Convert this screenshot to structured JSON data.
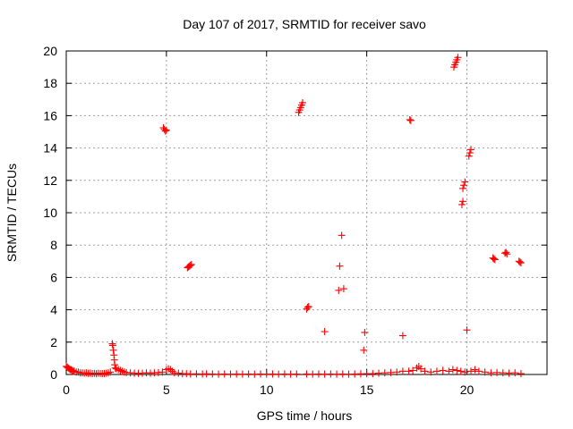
{
  "chart_data": {
    "type": "scatter",
    "title": "Day 107 of 2017, SRMTID for receiver savo",
    "xlabel": "GPS time / hours",
    "ylabel": "SRMTID / TECUs",
    "xlim": [
      0,
      24
    ],
    "ylim": [
      0,
      20
    ],
    "x_ticks": [
      0,
      5,
      10,
      15,
      20
    ],
    "x_tick_labels": [
      "0",
      "5",
      "10",
      "15",
      "20"
    ],
    "y_ticks": [
      0,
      2,
      4,
      6,
      8,
      10,
      12,
      14,
      16,
      18,
      20
    ],
    "y_tick_labels": [
      "0",
      "2",
      "4",
      "6",
      "8",
      "10",
      "12",
      "14",
      "16",
      "18",
      "20"
    ],
    "grid": true,
    "marker": "+",
    "series": [
      {
        "name": "SRMTID",
        "color": "#ff0000",
        "points": [
          [
            0.0,
            0.5
          ],
          [
            0.05,
            0.45
          ],
          [
            0.1,
            0.4
          ],
          [
            0.15,
            0.35
          ],
          [
            0.2,
            0.3
          ],
          [
            0.25,
            0.3
          ],
          [
            0.3,
            0.25
          ],
          [
            0.35,
            0.2
          ],
          [
            0.4,
            0.2
          ],
          [
            0.5,
            0.15
          ],
          [
            0.6,
            0.15
          ],
          [
            0.7,
            0.1
          ],
          [
            0.8,
            0.1
          ],
          [
            0.9,
            0.08
          ],
          [
            1.0,
            0.1
          ],
          [
            1.1,
            0.07
          ],
          [
            1.2,
            0.08
          ],
          [
            1.3,
            0.05
          ],
          [
            1.4,
            0.07
          ],
          [
            1.5,
            0.05
          ],
          [
            1.6,
            0.08
          ],
          [
            1.7,
            0.06
          ],
          [
            1.8,
            0.05
          ],
          [
            1.9,
            0.06
          ],
          [
            2.0,
            0.08
          ],
          [
            2.1,
            0.1
          ],
          [
            2.2,
            0.15
          ],
          [
            2.3,
            1.9
          ],
          [
            2.32,
            1.8
          ],
          [
            2.35,
            1.5
          ],
          [
            2.38,
            1.2
          ],
          [
            2.4,
            0.9
          ],
          [
            2.42,
            0.6
          ],
          [
            2.45,
            0.4
          ],
          [
            2.5,
            0.35
          ],
          [
            2.6,
            0.3
          ],
          [
            2.7,
            0.25
          ],
          [
            2.8,
            0.2
          ],
          [
            2.9,
            0.15
          ],
          [
            3.0,
            0.12
          ],
          [
            3.2,
            0.1
          ],
          [
            3.4,
            0.08
          ],
          [
            3.6,
            0.07
          ],
          [
            3.8,
            0.08
          ],
          [
            4.0,
            0.1
          ],
          [
            4.2,
            0.08
          ],
          [
            4.4,
            0.1
          ],
          [
            4.6,
            0.12
          ],
          [
            4.8,
            0.15
          ],
          [
            4.85,
            15.25
          ],
          [
            4.9,
            15.15
          ],
          [
            4.95,
            15.05
          ],
          [
            5.0,
            15.1
          ],
          [
            5.0,
            0.3
          ],
          [
            5.1,
            0.35
          ],
          [
            5.2,
            0.3
          ],
          [
            5.3,
            0.2
          ],
          [
            5.4,
            0.1
          ],
          [
            5.6,
            0.08
          ],
          [
            5.8,
            0.05
          ],
          [
            6.0,
            0.05
          ],
          [
            6.2,
            0.03
          ],
          [
            6.5,
            0.04
          ],
          [
            6.8,
            0.03
          ],
          [
            7.0,
            0.04
          ],
          [
            7.3,
            0.03
          ],
          [
            7.6,
            0.02
          ],
          [
            7.9,
            0.03
          ],
          [
            8.2,
            0.02
          ],
          [
            8.5,
            0.03
          ],
          [
            8.8,
            0.02
          ],
          [
            9.1,
            0.03
          ],
          [
            9.4,
            0.02
          ],
          [
            9.7,
            0.03
          ],
          [
            10.0,
            0.02
          ],
          [
            10.3,
            0.03
          ],
          [
            10.6,
            0.02
          ],
          [
            10.9,
            0.03
          ],
          [
            11.2,
            0.02
          ],
          [
            11.5,
            0.03
          ],
          [
            6.05,
            6.6
          ],
          [
            6.1,
            6.65
          ],
          [
            6.15,
            6.7
          ],
          [
            6.2,
            6.75
          ],
          [
            6.25,
            6.8
          ],
          [
            11.6,
            16.2
          ],
          [
            11.65,
            16.35
          ],
          [
            11.7,
            16.5
          ],
          [
            11.75,
            16.65
          ],
          [
            11.8,
            16.8
          ],
          [
            12.0,
            4.05
          ],
          [
            12.05,
            4.15
          ],
          [
            12.1,
            4.2
          ],
          [
            12.0,
            0.03
          ],
          [
            12.3,
            0.02
          ],
          [
            12.6,
            0.03
          ],
          [
            12.9,
            0.02
          ],
          [
            13.2,
            0.03
          ],
          [
            13.5,
            0.02
          ],
          [
            13.8,
            0.03
          ],
          [
            14.1,
            0.02
          ],
          [
            14.4,
            0.03
          ],
          [
            14.7,
            0.04
          ],
          [
            15.0,
            0.05
          ],
          [
            15.3,
            0.05
          ],
          [
            15.6,
            0.08
          ],
          [
            15.9,
            0.1
          ],
          [
            16.2,
            0.12
          ],
          [
            16.5,
            0.15
          ],
          [
            16.8,
            0.2
          ],
          [
            17.1,
            0.2
          ],
          [
            17.3,
            0.25
          ],
          [
            17.5,
            0.4
          ],
          [
            17.6,
            0.5
          ],
          [
            17.7,
            0.35
          ],
          [
            17.9,
            0.2
          ],
          [
            18.2,
            0.15
          ],
          [
            18.5,
            0.2
          ],
          [
            18.8,
            0.25
          ],
          [
            19.1,
            0.2
          ],
          [
            19.3,
            0.3
          ],
          [
            19.5,
            0.25
          ],
          [
            19.7,
            0.2
          ],
          [
            19.9,
            0.15
          ],
          [
            20.2,
            0.2
          ],
          [
            20.4,
            0.3
          ],
          [
            20.6,
            0.2
          ],
          [
            20.9,
            0.15
          ],
          [
            21.2,
            0.1
          ],
          [
            21.5,
            0.12
          ],
          [
            21.8,
            0.1
          ],
          [
            22.1,
            0.08
          ],
          [
            22.4,
            0.1
          ],
          [
            22.7,
            0.05
          ],
          [
            12.9,
            2.65
          ],
          [
            13.6,
            5.2
          ],
          [
            13.85,
            5.3
          ],
          [
            13.65,
            6.7
          ],
          [
            13.75,
            8.6
          ],
          [
            14.85,
            1.5
          ],
          [
            14.9,
            2.6
          ],
          [
            16.8,
            2.4
          ],
          [
            17.15,
            15.75
          ],
          [
            17.2,
            15.7
          ],
          [
            19.35,
            19.0
          ],
          [
            19.4,
            19.15
          ],
          [
            19.45,
            19.3
          ],
          [
            19.5,
            19.45
          ],
          [
            19.55,
            19.6
          ],
          [
            19.75,
            10.5
          ],
          [
            19.8,
            10.7
          ],
          [
            19.8,
            11.5
          ],
          [
            19.85,
            11.7
          ],
          [
            19.9,
            11.9
          ],
          [
            20.0,
            2.75
          ],
          [
            20.1,
            13.5
          ],
          [
            20.15,
            13.7
          ],
          [
            20.2,
            13.9
          ],
          [
            21.3,
            7.2
          ],
          [
            21.35,
            7.15
          ],
          [
            21.4,
            7.1
          ],
          [
            21.9,
            7.5
          ],
          [
            21.95,
            7.55
          ],
          [
            22.0,
            7.45
          ],
          [
            22.6,
            7.0
          ],
          [
            22.65,
            6.95
          ],
          [
            22.7,
            6.9
          ]
        ]
      }
    ]
  }
}
